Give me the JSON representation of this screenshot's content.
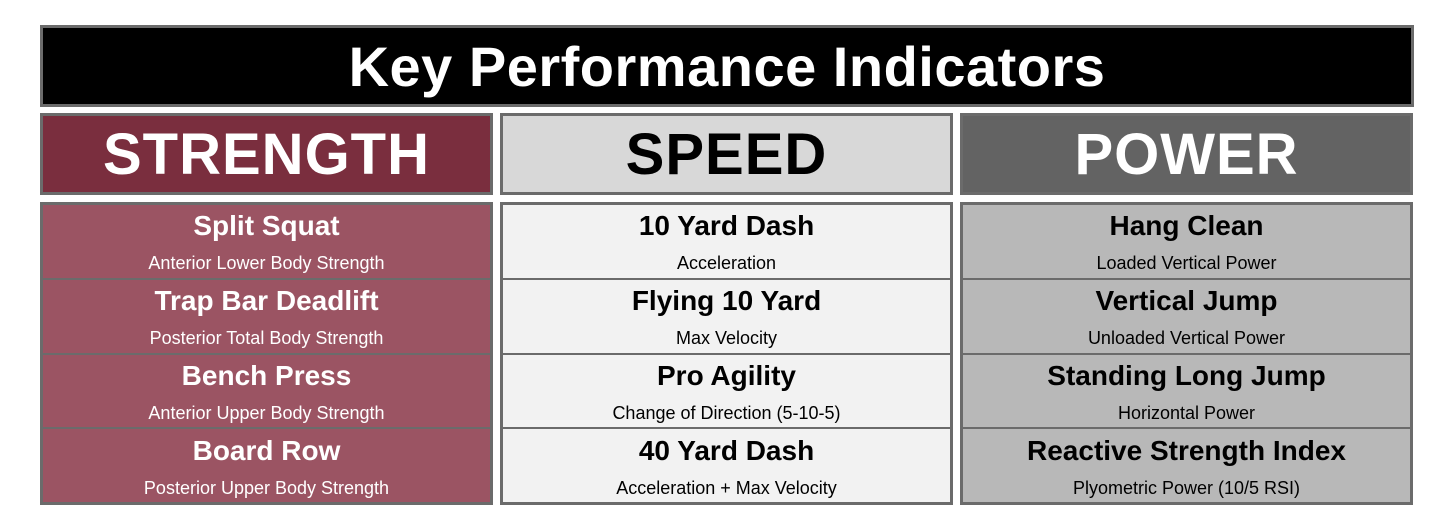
{
  "title": "Key Performance Indicators",
  "colors": {
    "strength_header": "#7a2e3e",
    "strength_body": "#9b5463",
    "speed_header": "#d8d8d8",
    "speed_body": "#f2f2f2",
    "power_header": "#636363",
    "power_body": "#b8b8b8",
    "border": "#6b6b6b"
  },
  "columns": [
    {
      "heading": "STRENGTH",
      "tests": [
        {
          "name": "Split Squat",
          "desc": "Anterior Lower Body Strength"
        },
        {
          "name": "Trap Bar Deadlift",
          "desc": "Posterior Total Body Strength"
        },
        {
          "name": "Bench Press",
          "desc": "Anterior Upper Body Strength"
        },
        {
          "name": "Board Row",
          "desc": "Posterior Upper Body Strength"
        }
      ]
    },
    {
      "heading": "SPEED",
      "tests": [
        {
          "name": "10 Yard Dash",
          "desc": "Acceleration"
        },
        {
          "name": "Flying 10 Yard",
          "desc": "Max Velocity"
        },
        {
          "name": "Pro Agility",
          "desc": "Change of Direction (5-10-5)"
        },
        {
          "name": "40 Yard Dash",
          "desc": "Acceleration + Max Velocity"
        }
      ]
    },
    {
      "heading": "POWER",
      "tests": [
        {
          "name": "Hang Clean",
          "desc": "Loaded Vertical Power"
        },
        {
          "name": "Vertical Jump",
          "desc": "Unloaded Vertical Power"
        },
        {
          "name": "Standing Long Jump",
          "desc": "Horizontal Power"
        },
        {
          "name": "Reactive Strength Index",
          "desc": "Plyometric Power (10/5 RSI)"
        }
      ]
    }
  ]
}
